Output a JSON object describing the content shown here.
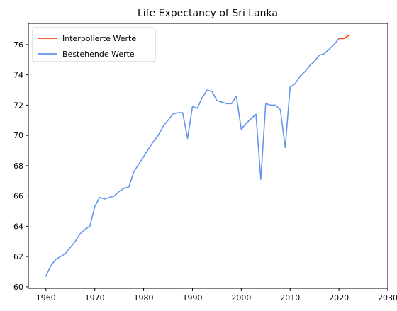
{
  "chart_data": {
    "type": "line",
    "title": "Life Expectancy of Sri Lanka",
    "xlabel": "",
    "ylabel": "",
    "xlim": [
      1956.4,
      2030
    ],
    "ylim": [
      59.9,
      77.4
    ],
    "x_ticks": [
      1960,
      1970,
      1980,
      1990,
      2000,
      2010,
      2020,
      2030
    ],
    "y_ticks": [
      60,
      62,
      64,
      66,
      68,
      70,
      72,
      74,
      76
    ],
    "grid": false,
    "legend_position": "upper-left",
    "series": [
      {
        "name": "Interpolierte Werte",
        "color": "#ff4500",
        "x": [
          2020,
          2021,
          2022
        ],
        "y": [
          76.4,
          76.4,
          76.6
        ]
      },
      {
        "name": "Bestehende Werte",
        "color": "#6495ed",
        "x": [
          1960,
          1961,
          1962,
          1963,
          1964,
          1965,
          1966,
          1967,
          1968,
          1969,
          1970,
          1971,
          1972,
          1973,
          1974,
          1975,
          1976,
          1977,
          1978,
          1979,
          1980,
          1981,
          1982,
          1983,
          1984,
          1985,
          1986,
          1987,
          1988,
          1989,
          1990,
          1991,
          1992,
          1993,
          1994,
          1995,
          1996,
          1997,
          1998,
          1999,
          2000,
          2001,
          2002,
          2003,
          2004,
          2005,
          2006,
          2007,
          2008,
          2009,
          2010,
          2011,
          2012,
          2013,
          2014,
          2015,
          2016,
          2017,
          2018,
          2019,
          2020,
          2021
        ],
        "y": [
          60.7,
          61.4,
          61.8,
          62.0,
          62.2,
          62.6,
          63.0,
          63.5,
          63.8,
          64.0,
          65.3,
          65.9,
          65.8,
          65.9,
          66.0,
          66.3,
          66.5,
          66.6,
          67.6,
          68.1,
          68.6,
          69.1,
          69.6,
          70.0,
          70.6,
          71.0,
          71.4,
          71.5,
          71.5,
          69.8,
          71.9,
          71.8,
          72.5,
          73.0,
          72.9,
          72.3,
          72.2,
          72.1,
          72.1,
          72.6,
          70.4,
          70.8,
          71.1,
          71.4,
          67.1,
          72.1,
          72.0,
          72.0,
          71.7,
          69.2,
          73.2,
          73.4,
          73.9,
          74.2,
          74.6,
          74.9,
          75.3,
          75.4,
          75.7,
          76.0,
          76.4,
          76.4
        ]
      }
    ]
  }
}
